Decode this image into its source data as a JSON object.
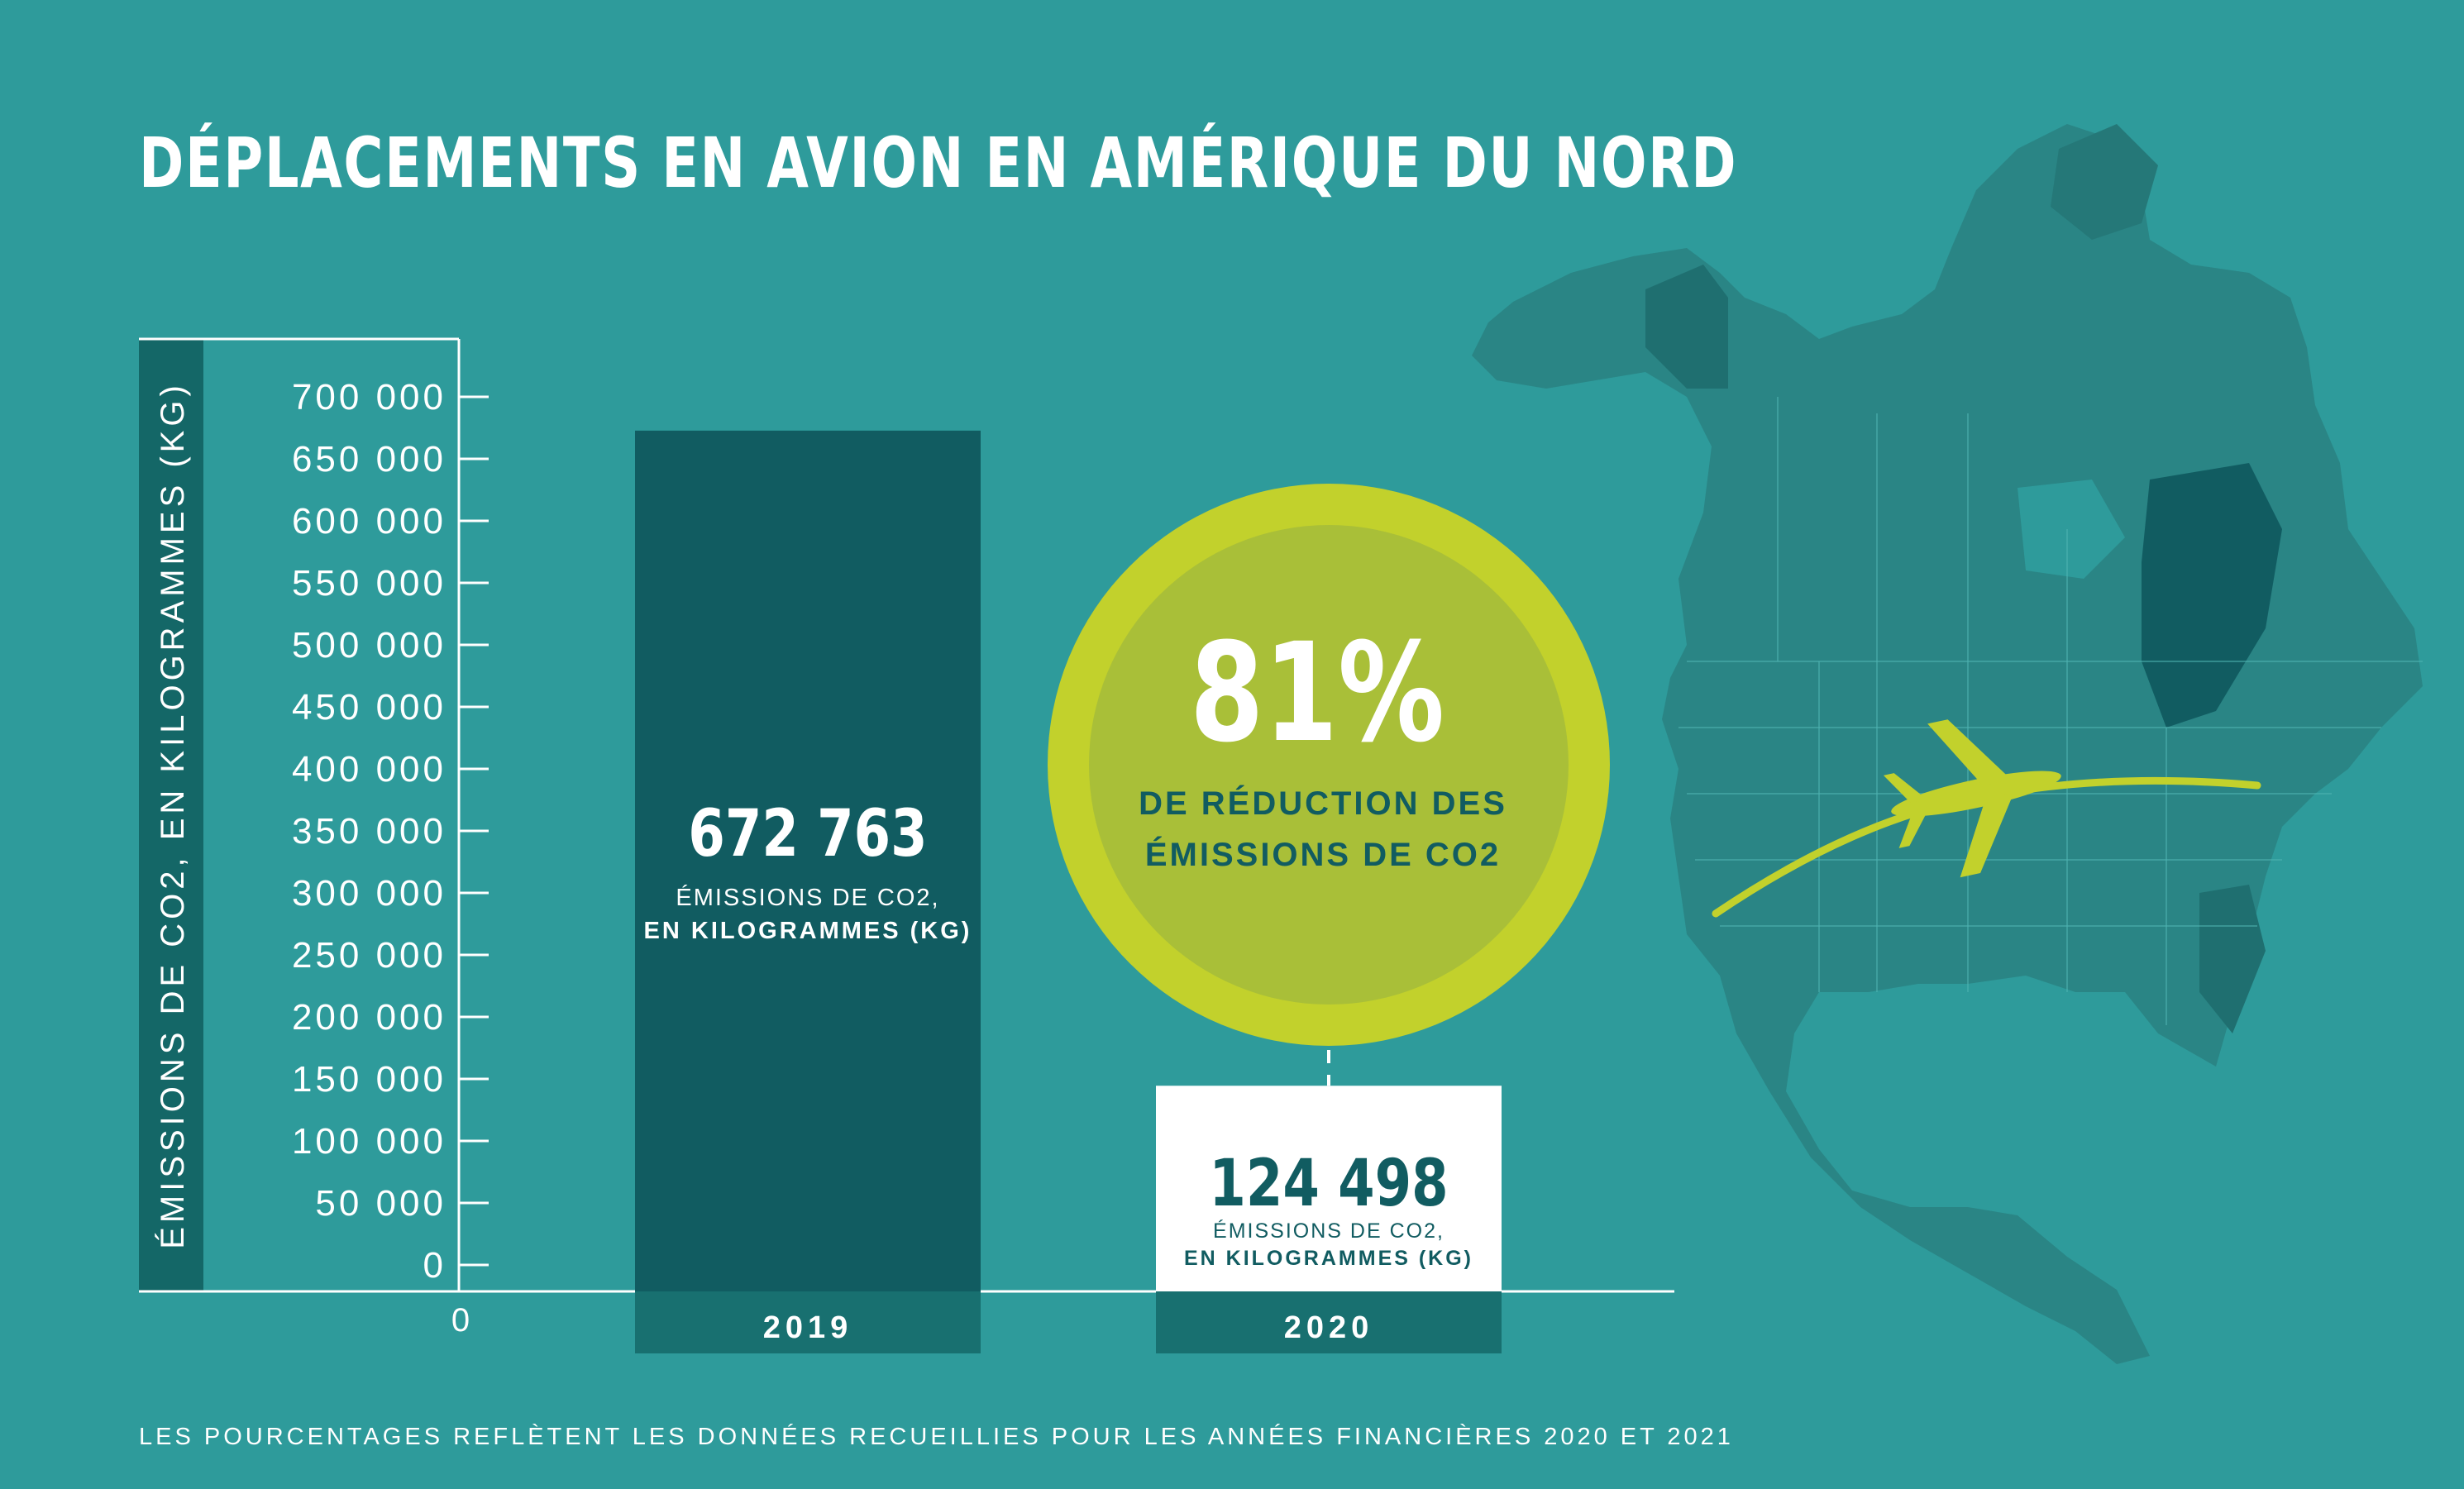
{
  "title": "DÉPLACEMENTS EN AVION EN AMÉRIQUE DU NORD",
  "footnote": "LES POURCENTAGES REFLÈTENT LES DONNÉES RECUEILLIES POUR LES ANNÉES FINANCIÈRES 2020 ET 2021",
  "colors": {
    "background": "#2e9b9b",
    "bar_2019": "#115c61",
    "category_band": "#187070",
    "circle_outer": "#c2d12c",
    "circle_inner": "#a9bf38",
    "circle_text": "#115c61",
    "map_land": "#2a8585"
  },
  "chart_data": {
    "type": "bar",
    "ylabel": "ÉMISSIONS DE CO2, EN KILOGRAMMES (KG)",
    "ylim": [
      0,
      700000
    ],
    "yticks": [
      0,
      50000,
      100000,
      150000,
      200000,
      250000,
      300000,
      350000,
      400000,
      450000,
      500000,
      550000,
      600000,
      650000,
      700000
    ],
    "ytick_labels": [
      "0",
      "50 000",
      "100 000",
      "150 000",
      "200 000",
      "250 000",
      "300 000",
      "350 000",
      "400 000",
      "450 000",
      "500 000",
      "550 000",
      "600 000",
      "650 000",
      "700 000"
    ],
    "x_origin_label": "0",
    "categories": [
      "2019",
      "2020"
    ],
    "values": [
      672763,
      124498
    ],
    "value_labels": [
      {
        "value": "672 763",
        "line1": "ÉMISSIONS DE CO2,",
        "line2": "EN KILOGRAMMES (KG)"
      },
      {
        "value": "124 498",
        "line1": "ÉMISSIONS DE CO2,",
        "line2": "EN KILOGRAMMES (KG)"
      }
    ],
    "grid": false,
    "annotation": {
      "percent": "81%",
      "line1": "DE RÉDUCTION DES",
      "line2": "ÉMISSIONS DE CO2"
    }
  },
  "map": {
    "icon": "north-america-map-icon",
    "route_icon": "flight-route-icon",
    "plane_icon": "airplane-icon"
  }
}
